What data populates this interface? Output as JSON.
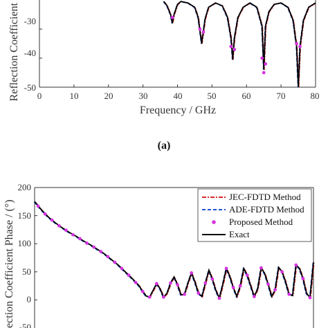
{
  "colors": {
    "jec": "#d62728",
    "ade": "#1f4fd6",
    "proposed": "#d633e0",
    "exact": "#000000",
    "axis": "#333333"
  },
  "chart_data": [
    {
      "type": "line",
      "panel": "top",
      "xlabel": "Frequency / GHz",
      "ylabel": "Reflection Coefficient",
      "xlim": [
        0,
        80
      ],
      "ylim": [
        -50,
        -20
      ],
      "xticks": [
        "0",
        "10",
        "20",
        "30",
        "40",
        "50",
        "60",
        "70",
        "80"
      ],
      "yticks": [
        "-30",
        "-40",
        "-50"
      ],
      "grid": false,
      "dip_frequencies": [
        38.5,
        47,
        56,
        65,
        75
      ],
      "series": [
        {
          "name": "Exact",
          "x": [
            36,
            37,
            38,
            38.5,
            39,
            40,
            41,
            43,
            45,
            46,
            47,
            48,
            49,
            51,
            53,
            54.5,
            55.5,
            56,
            56.5,
            57.5,
            59,
            61,
            63,
            64.5,
            65,
            65.5,
            66.5,
            68,
            70,
            72,
            73.5,
            74.5,
            75,
            75.5,
            76.5,
            78,
            80
          ],
          "y": [
            -20.5,
            -22,
            -25,
            -28,
            -25,
            -21.5,
            -20.5,
            -21,
            -22.5,
            -26,
            -35,
            -26.5,
            -22.5,
            -21,
            -22,
            -26,
            -33,
            -40.5,
            -33,
            -26,
            -22.5,
            -21,
            -22.5,
            -29,
            -44,
            -29,
            -24,
            -21.5,
            -21,
            -22.5,
            -27,
            -36,
            -50,
            -36,
            -27,
            -22.5,
            -21
          ]
        },
        {
          "name": "Proposed Method",
          "x": [
            38.5,
            46.5,
            47.5,
            55.5,
            56.5,
            64.5,
            65,
            65.5,
            74.5,
            75.5
          ],
          "y": [
            -26,
            -30,
            -31,
            -36,
            -37,
            -40,
            -45,
            -42,
            -35,
            -36
          ]
        }
      ]
    },
    {
      "type": "line",
      "panel": "bottom",
      "caption": "(a)",
      "xlabel": "",
      "ylabel": "ection Coefficient Phase / (°)",
      "xlim": [
        0,
        80
      ],
      "ylim": [
        -50,
        200
      ],
      "yticks": [
        "200",
        "150",
        "100",
        "50",
        "0",
        "-50"
      ],
      "grid": false,
      "legend_position": "top-right",
      "legend": [
        "JEC-FDTD Method",
        "ADE-FDTD Method",
        "Proposed Method",
        "Exact"
      ],
      "series": [
        {
          "name": "Exact",
          "x": [
            0,
            2,
            4,
            6,
            8,
            10,
            12,
            14,
            16,
            18,
            20,
            22,
            24,
            26,
            28,
            30,
            31,
            32,
            33,
            34,
            35,
            36,
            37,
            38,
            39,
            40,
            41,
            42,
            43,
            44,
            45,
            46,
            47,
            48,
            49,
            50,
            51,
            52,
            53,
            54,
            55,
            56,
            57,
            58,
            59,
            60,
            61,
            62,
            63,
            64,
            65,
            66,
            67,
            68,
            69,
            70,
            71,
            72,
            73,
            74,
            75,
            76,
            77,
            78,
            79,
            80
          ],
          "y": [
            175,
            160,
            147,
            137,
            128,
            120,
            113,
            105,
            98,
            90,
            82,
            72,
            62,
            50,
            38,
            25,
            15,
            7,
            5,
            17,
            29,
            20,
            5,
            12,
            30,
            41,
            27,
            9,
            10,
            30,
            48,
            32,
            12,
            6,
            30,
            53,
            37,
            17,
            3,
            28,
            56,
            42,
            22,
            6,
            25,
            56,
            44,
            25,
            6,
            20,
            57,
            47,
            28,
            6,
            18,
            58,
            50,
            32,
            10,
            8,
            62,
            56,
            38,
            12,
            4,
            67
          ]
        },
        {
          "name": "Proposed Method",
          "x": [
            1,
            3,
            5,
            7,
            9,
            11,
            13,
            15,
            17,
            19,
            21,
            23,
            25,
            27,
            29,
            31,
            33,
            35,
            37,
            39,
            41,
            43,
            45,
            47,
            49,
            51,
            53,
            55,
            57,
            59,
            61,
            63,
            65,
            67,
            69,
            71,
            73,
            75,
            77,
            79
          ],
          "y": [
            167,
            153,
            142,
            132,
            124,
            116,
            109,
            101,
            94,
            86,
            77,
            67,
            56,
            44,
            31,
            15,
            5,
            29,
            5,
            30,
            27,
            10,
            48,
            12,
            30,
            37,
            3,
            56,
            22,
            25,
            44,
            6,
            57,
            28,
            18,
            50,
            10,
            62,
            38,
            4
          ]
        }
      ]
    }
  ],
  "caption": "(a)"
}
